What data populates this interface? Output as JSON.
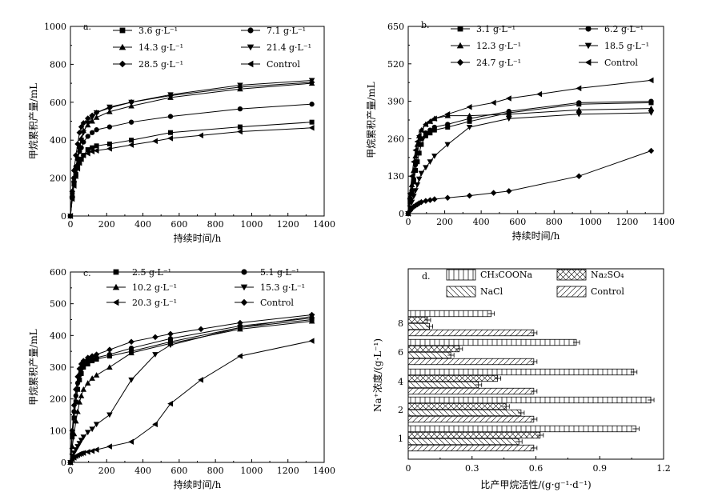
{
  "chart_data": [
    {
      "type": "line",
      "panel_label": "a.",
      "xlabel": "持续时间/h",
      "ylabel": "甲烷累积产量/mL",
      "xlim": [
        0,
        1400
      ],
      "ylim": [
        0,
        1000
      ],
      "xticks": [
        "0",
        "200",
        "400",
        "600",
        "800",
        "1000",
        "1200",
        "1400"
      ],
      "yticks": [
        "0",
        "200",
        "400",
        "600",
        "800",
        "1000"
      ],
      "series": [
        {
          "name": "3.6 g·L⁻¹",
          "marker": "square",
          "x": [
            0,
            10,
            20,
            30,
            40,
            50,
            60,
            72,
            96,
            120,
            144,
            216,
            336,
            552,
            936,
            1332
          ],
          "y": [
            0,
            100,
            175,
            220,
            255,
            280,
            300,
            320,
            350,
            360,
            370,
            380,
            400,
            440,
            470,
            495
          ]
        },
        {
          "name": "7.1 g·L⁻¹",
          "marker": "circle",
          "x": [
            0,
            10,
            20,
            30,
            40,
            50,
            60,
            72,
            96,
            120,
            144,
            216,
            336,
            552,
            936,
            1332
          ],
          "y": [
            0,
            120,
            200,
            260,
            300,
            340,
            360,
            390,
            420,
            440,
            455,
            470,
            495,
            525,
            565,
            590
          ]
        },
        {
          "name": "14.3 g·L⁻¹",
          "marker": "triangle-up",
          "x": [
            0,
            10,
            20,
            30,
            40,
            50,
            60,
            72,
            96,
            120,
            144,
            216,
            336,
            552,
            936,
            1332
          ],
          "y": [
            0,
            110,
            190,
            260,
            310,
            370,
            410,
            450,
            480,
            500,
            520,
            550,
            580,
            625,
            670,
            700
          ]
        },
        {
          "name": "21.4 g·L⁻¹",
          "marker": "triangle-down",
          "x": [
            0,
            10,
            20,
            30,
            40,
            50,
            60,
            72,
            96,
            120,
            144,
            216,
            336,
            552,
            936,
            1332
          ],
          "y": [
            0,
            90,
            170,
            240,
            300,
            350,
            400,
            440,
            490,
            520,
            545,
            575,
            600,
            640,
            690,
            715
          ]
        },
        {
          "name": "28.5 g·L⁻¹",
          "marker": "diamond",
          "x": [
            0,
            10,
            20,
            30,
            40,
            50,
            60,
            72,
            96,
            120,
            144,
            216,
            336,
            552,
            936,
            1332
          ],
          "y": [
            0,
            130,
            240,
            320,
            380,
            440,
            470,
            490,
            515,
            530,
            545,
            570,
            600,
            635,
            680,
            705
          ]
        },
        {
          "name": "Control",
          "marker": "triangle-left",
          "x": [
            0,
            10,
            20,
            30,
            40,
            50,
            60,
            72,
            96,
            120,
            144,
            216,
            336,
            468,
            552,
            720,
            936,
            1332
          ],
          "y": [
            0,
            90,
            160,
            210,
            250,
            280,
            300,
            320,
            330,
            340,
            345,
            355,
            375,
            395,
            410,
            425,
            445,
            465
          ]
        }
      ]
    },
    {
      "type": "line",
      "panel_label": "b.",
      "xlabel": "持续时间/h",
      "ylabel": "甲烷累积产量/mL",
      "xlim": [
        0,
        1400
      ],
      "ylim": [
        0,
        650
      ],
      "xticks": [
        "0",
        "200",
        "400",
        "600",
        "800",
        "1000",
        "1200",
        "1400"
      ],
      "yticks": [
        "0",
        "130",
        "260",
        "390",
        "520",
        "650"
      ],
      "series": [
        {
          "name": "3.1 g·L⁻¹",
          "marker": "square",
          "x": [
            0,
            10,
            20,
            30,
            40,
            50,
            60,
            72,
            96,
            120,
            144,
            216,
            336,
            552,
            936,
            1332
          ],
          "y": [
            0,
            40,
            70,
            110,
            150,
            180,
            210,
            240,
            270,
            280,
            290,
            300,
            320,
            350,
            380,
            385
          ]
        },
        {
          "name": "6.2 g·L⁻¹",
          "marker": "circle",
          "x": [
            0,
            10,
            20,
            30,
            40,
            50,
            60,
            72,
            96,
            120,
            144,
            216,
            336,
            552,
            936,
            1332
          ],
          "y": [
            0,
            50,
            80,
            120,
            170,
            210,
            240,
            260,
            280,
            290,
            300,
            310,
            330,
            355,
            385,
            390
          ]
        },
        {
          "name": "12.3 g·L⁻¹",
          "marker": "triangle-up",
          "x": [
            0,
            10,
            20,
            30,
            40,
            50,
            60,
            72,
            96,
            120,
            144,
            216,
            336,
            552,
            936,
            1332
          ],
          "y": [
            0,
            60,
            100,
            150,
            200,
            240,
            270,
            290,
            310,
            320,
            330,
            340,
            340,
            345,
            360,
            365
          ]
        },
        {
          "name": "18.5 g·L⁻¹",
          "marker": "triangle-down",
          "x": [
            0,
            10,
            20,
            30,
            40,
            50,
            60,
            72,
            96,
            120,
            144,
            216,
            336,
            552,
            936,
            1332
          ],
          "y": [
            0,
            20,
            40,
            60,
            80,
            100,
            120,
            140,
            160,
            180,
            200,
            240,
            300,
            330,
            345,
            350
          ]
        },
        {
          "name": "24.7 g·L⁻¹",
          "marker": "diamond",
          "x": [
            0,
            10,
            20,
            30,
            40,
            50,
            60,
            72,
            96,
            120,
            144,
            216,
            336,
            468,
            552,
            936,
            1332
          ],
          "y": [
            0,
            10,
            18,
            24,
            28,
            32,
            36,
            40,
            44,
            47,
            50,
            55,
            62,
            72,
            78,
            130,
            218
          ]
        },
        {
          "name": "Control",
          "marker": "triangle-left",
          "x": [
            0,
            10,
            20,
            30,
            40,
            50,
            60,
            72,
            96,
            120,
            144,
            216,
            336,
            468,
            552,
            720,
            936,
            1332
          ],
          "y": [
            0,
            70,
            130,
            180,
            220,
            250,
            270,
            290,
            310,
            320,
            330,
            345,
            370,
            385,
            400,
            415,
            435,
            463
          ]
        }
      ]
    },
    {
      "type": "line",
      "panel_label": "c.",
      "xlabel": "持续时间/h",
      "ylabel": "甲烷累积产量/mL",
      "xlim": [
        0,
        1400
      ],
      "ylim": [
        0,
        600
      ],
      "xticks": [
        "0",
        "200",
        "400",
        "600",
        "800",
        "1000",
        "1200",
        "1400"
      ],
      "yticks": [
        "0",
        "100",
        "200",
        "300",
        "400",
        "500",
        "600"
      ],
      "series": [
        {
          "name": "2.5 g·L⁻¹",
          "marker": "square",
          "x": [
            0,
            10,
            20,
            30,
            40,
            50,
            60,
            72,
            96,
            120,
            144,
            216,
            336,
            552,
            936,
            1332
          ],
          "y": [
            0,
            80,
            140,
            190,
            230,
            260,
            280,
            300,
            310,
            320,
            325,
            335,
            350,
            380,
            425,
            450
          ]
        },
        {
          "name": "5.1 g·L⁻¹",
          "marker": "circle",
          "x": [
            0,
            10,
            20,
            30,
            40,
            50,
            60,
            72,
            96,
            120,
            144,
            216,
            336,
            552,
            936,
            1332
          ],
          "y": [
            0,
            90,
            160,
            210,
            250,
            275,
            295,
            310,
            320,
            325,
            330,
            340,
            360,
            390,
            430,
            455
          ]
        },
        {
          "name": "10.2 g·L⁻¹",
          "marker": "triangle-up",
          "x": [
            0,
            10,
            20,
            30,
            40,
            50,
            60,
            72,
            96,
            120,
            144,
            216,
            336,
            552,
            936,
            1332
          ],
          "y": [
            0,
            50,
            90,
            130,
            160,
            190,
            210,
            230,
            250,
            265,
            275,
            300,
            345,
            375,
            420,
            445
          ]
        },
        {
          "name": "15.3 g·L⁻¹",
          "marker": "triangle-down",
          "x": [
            0,
            10,
            20,
            30,
            40,
            50,
            60,
            72,
            96,
            120,
            144,
            216,
            336,
            468,
            552,
            936,
            1332
          ],
          "y": [
            0,
            20,
            30,
            40,
            50,
            60,
            70,
            80,
            95,
            105,
            120,
            150,
            260,
            340,
            370,
            425,
            460
          ]
        },
        {
          "name": "20.3 g·L⁻¹",
          "marker": "triangle-left",
          "x": [
            0,
            10,
            20,
            30,
            40,
            50,
            60,
            72,
            96,
            120,
            144,
            216,
            336,
            468,
            552,
            720,
            936,
            1332
          ],
          "y": [
            0,
            10,
            15,
            20,
            23,
            26,
            28,
            30,
            33,
            36,
            40,
            50,
            65,
            120,
            185,
            260,
            335,
            383
          ]
        },
        {
          "name": "Control",
          "marker": "diamond",
          "x": [
            0,
            10,
            20,
            30,
            40,
            50,
            60,
            72,
            96,
            120,
            144,
            216,
            336,
            468,
            552,
            720,
            936,
            1332
          ],
          "y": [
            0,
            100,
            180,
            230,
            270,
            295,
            310,
            320,
            330,
            335,
            340,
            355,
            380,
            395,
            405,
            420,
            440,
            465
          ]
        }
      ]
    },
    {
      "type": "bar",
      "orientation": "horizontal",
      "panel_label": "d.",
      "xlabel": "比产甲烷活性/(g·g⁻¹·d⁻¹)",
      "ylabel": "Na⁺浓度/(g·L⁻¹)",
      "xlim": [
        0,
        1.2
      ],
      "xticks": [
        "0",
        "0.3",
        "0.6",
        "0.9",
        "1.2"
      ],
      "categories": [
        "1",
        "2",
        "4",
        "6",
        "8"
      ],
      "series": [
        {
          "name": "CH₃COONa",
          "pattern": "vertical",
          "values": [
            1.07,
            1.14,
            1.06,
            0.79,
            0.39
          ]
        },
        {
          "name": "Na₂SO₄",
          "pattern": "crosshatch",
          "values": [
            0.62,
            0.46,
            0.42,
            0.24,
            0.09
          ]
        },
        {
          "name": "NaCl",
          "pattern": "backslash",
          "values": [
            0.52,
            0.53,
            0.33,
            0.2,
            0.1
          ]
        },
        {
          "name": "Control",
          "pattern": "slash",
          "values": [
            0.59,
            0.59,
            0.59,
            0.59,
            0.59
          ]
        }
      ]
    }
  ]
}
